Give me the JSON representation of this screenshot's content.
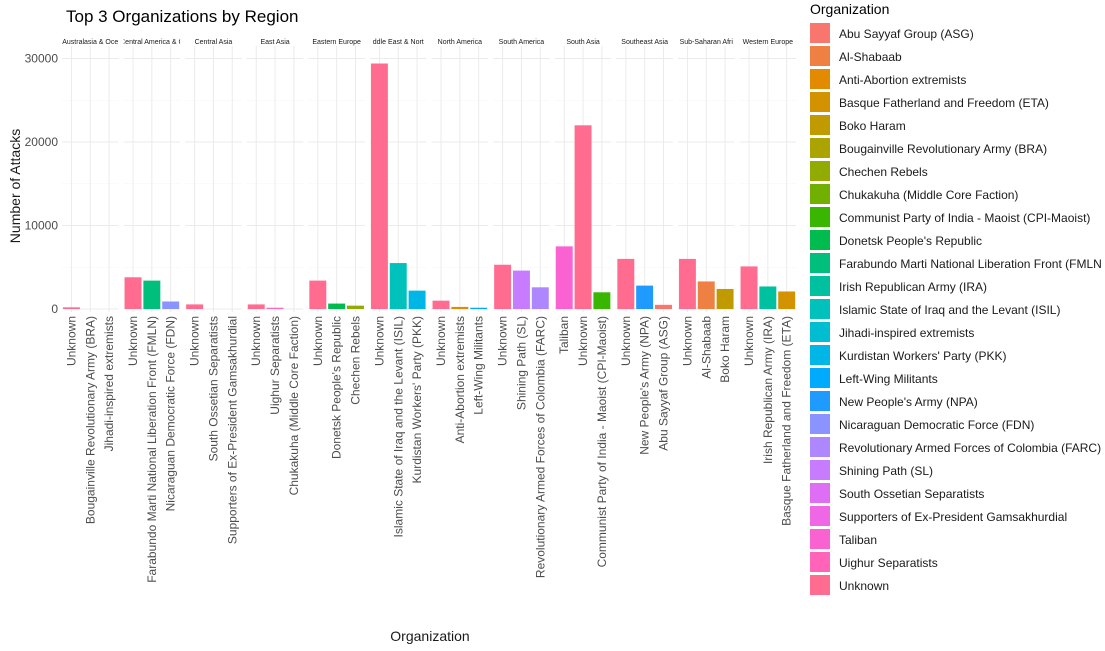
{
  "chart_data": {
    "type": "bar",
    "title": "Top 3 Organizations by Region",
    "xlabel": "Organization",
    "ylabel": "Number of Attacks",
    "ylim": [
      0,
      31500
    ],
    "yticks": [
      0,
      10000,
      20000,
      30000
    ],
    "ytick_labels": [
      "0",
      "10000",
      "20000",
      "30000"
    ],
    "grid": true,
    "legend_position": "right",
    "legend_title": "Organization",
    "legend": [
      {
        "name": "Abu Sayyaf Group (ASG)",
        "color": "#F8766D"
      },
      {
        "name": "Al-Shabaab",
        "color": "#EE8044"
      },
      {
        "name": "Anti-Abortion extremists",
        "color": "#E28A00"
      },
      {
        "name": "Basque Fatherland and Freedom (ETA)",
        "color": "#D39200"
      },
      {
        "name": "Boko Haram",
        "color": "#C19A00"
      },
      {
        "name": "Bougainville Revolutionary Army (BRA)",
        "color": "#ABA300"
      },
      {
        "name": "Chechen Rebels",
        "color": "#93AA00"
      },
      {
        "name": "Chukakuha (Middle Core Faction)",
        "color": "#72B000"
      },
      {
        "name": "Communist Party of India - Maoist (CPI-Maoist)",
        "color": "#39B600"
      },
      {
        "name": "Donetsk People's Republic",
        "color": "#00BB4E"
      },
      {
        "name": "Farabundo Marti National Liberation Front (FMLN",
        "color": "#00BF7D"
      },
      {
        "name": "Irish Republican Army (IRA)",
        "color": "#00C19F"
      },
      {
        "name": "Islamic State of Iraq and the Levant (ISIL)",
        "color": "#00C1BB"
      },
      {
        "name": "Jihadi-inspired extremists",
        "color": "#00BDD2"
      },
      {
        "name": "Kurdistan Workers' Party (PKK)",
        "color": "#00B6E6"
      },
      {
        "name": "Left-Wing Militants",
        "color": "#00ABFD"
      },
      {
        "name": "New People's Army (NPA)",
        "color": "#1F9BFF"
      },
      {
        "name": "Nicaraguan Democratic Force (FDN)",
        "color": "#8B93FF"
      },
      {
        "name": "Revolutionary Armed Forces of Colombia (FARC)",
        "color": "#AE87FF"
      },
      {
        "name": "Shining Path (SL)",
        "color": "#C77CFF"
      },
      {
        "name": "South Ossetian Separatists",
        "color": "#DE6FF4"
      },
      {
        "name": "Supporters of Ex-President Gamsakhurdial",
        "color": "#EF67E4"
      },
      {
        "name": "Taliban",
        "color": "#FA62D1"
      },
      {
        "name": "Uighur Separatists",
        "color": "#FF64B8"
      },
      {
        "name": "Unknown",
        "color": "#FF6C90"
      }
    ],
    "panels": [
      {
        "region": "Australasia & Oce",
        "bars": [
          {
            "org": "Unknown",
            "value": 200
          },
          {
            "org": "Bougainville Revolutionary Army (BRA)",
            "value": 0
          },
          {
            "org": "Jihadi-inspired extremists",
            "value": 0
          }
        ]
      },
      {
        "region": "Central America & C",
        "bars": [
          {
            "org": "Unknown",
            "value": 3800
          },
          {
            "org": "Farabundo Marti National Liberation Front (FMLN)",
            "value": 3400
          },
          {
            "org": "Nicaraguan Democratic Force (FDN)",
            "value": 900
          }
        ]
      },
      {
        "region": "Central Asia",
        "bars": [
          {
            "org": "Unknown",
            "value": 550
          },
          {
            "org": "South Ossetian Separatists",
            "value": 0
          },
          {
            "org": "Supporters of Ex-President Gamsakhurdial",
            "value": 0
          }
        ]
      },
      {
        "region": "East Asia",
        "bars": [
          {
            "org": "Unknown",
            "value": 550
          },
          {
            "org": "Uighur Separatists",
            "value": 150
          },
          {
            "org": "Chukakuha (Middle Core Faction)",
            "value": 0
          }
        ]
      },
      {
        "region": "Eastern Europe",
        "bars": [
          {
            "org": "Unknown",
            "value": 3400
          },
          {
            "org": "Donetsk People's Republic",
            "value": 650
          },
          {
            "org": "Chechen Rebels",
            "value": 400
          }
        ]
      },
      {
        "region": "ddle East & Nort",
        "bars": [
          {
            "org": "Unknown",
            "value": 29400
          },
          {
            "org": "Islamic State of Iraq and the Levant (ISIL)",
            "value": 5500
          },
          {
            "org": "Kurdistan Workers' Party (PKK)",
            "value": 2200
          }
        ]
      },
      {
        "region": "North America",
        "bars": [
          {
            "org": "Unknown",
            "value": 1000
          },
          {
            "org": "Anti-Abortion extremists",
            "value": 250
          },
          {
            "org": "Left-Wing Militants",
            "value": 150
          }
        ]
      },
      {
        "region": "South America",
        "bars": [
          {
            "org": "Unknown",
            "value": 5300
          },
          {
            "org": "Shining Path (SL)",
            "value": 4600
          },
          {
            "org": "Revolutionary Armed Forces of Colombia (FARC)",
            "value": 2600
          }
        ]
      },
      {
        "region": "South Asia",
        "bars": [
          {
            "org": "Taliban",
            "value": 7500
          },
          {
            "org": "Unknown",
            "value": 22000
          },
          {
            "org": "Communist Party of India - Maoist (CPI-Maoist)",
            "value": 2000
          }
        ]
      },
      {
        "region": "Southeast Asia",
        "bars": [
          {
            "org": "Unknown",
            "value": 6000
          },
          {
            "org": "New People's Army (NPA)",
            "value": 2800
          },
          {
            "org": "Abu Sayyaf Group (ASG)",
            "value": 500
          }
        ]
      },
      {
        "region": "Sub-Saharan Afri",
        "bars": [
          {
            "org": "Unknown",
            "value": 6000
          },
          {
            "org": "Al-Shabaab",
            "value": 3300
          },
          {
            "org": "Boko Haram",
            "value": 2400
          }
        ]
      },
      {
        "region": "Western Europe",
        "bars": [
          {
            "org": "Unknown",
            "value": 5100
          },
          {
            "org": "Irish Republican Army (IRA)",
            "value": 2700
          },
          {
            "org": "Basque Fatherland and Freedom (ETA)",
            "value": 2100
          }
        ]
      }
    ]
  }
}
